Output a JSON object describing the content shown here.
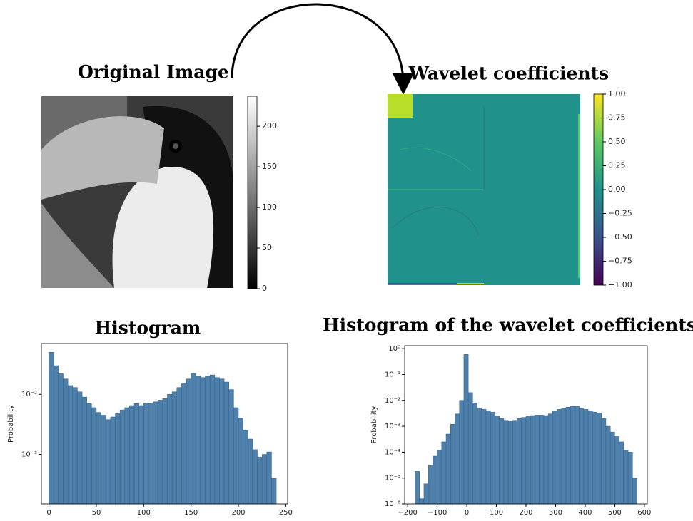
{
  "chart_data": [
    {
      "type": "image",
      "title": "Original Image",
      "colorbar": {
        "cmap": "gray",
        "ylim": [
          0,
          237
        ],
        "yticks": [
          0,
          50,
          100,
          150,
          200
        ]
      }
    },
    {
      "type": "image",
      "title": "Wavelet coefficients",
      "colorbar": {
        "cmap": "viridis",
        "ylim": [
          -1,
          1
        ],
        "yticks": [
          {
            "value": -1,
            "label": "−1.00"
          },
          {
            "value": -0.75,
            "label": "−0.75"
          },
          {
            "value": -0.5,
            "label": "−0.50"
          },
          {
            "value": -0.25,
            "label": "−0.25"
          },
          {
            "value": 0,
            "label": "0.00"
          },
          {
            "value": 0.25,
            "label": "0.25"
          },
          {
            "value": 0.5,
            "label": "0.50"
          },
          {
            "value": 0.75,
            "label": "0.75"
          },
          {
            "value": 1,
            "label": "1.00"
          }
        ]
      }
    },
    {
      "type": "histogram",
      "title": "Histogram",
      "ylabel": "Probability",
      "yscale": "log",
      "color": "#4f80ab",
      "bins": [
        0,
        5,
        10,
        15,
        20,
        25,
        30,
        35,
        40,
        45,
        50,
        55,
        60,
        65,
        70,
        75,
        80,
        85,
        90,
        95,
        100,
        105,
        110,
        115,
        120,
        125,
        130,
        135,
        140,
        145,
        150,
        155,
        160,
        165,
        170,
        175,
        180,
        185,
        190,
        195,
        200,
        205,
        210,
        215,
        220,
        225,
        230,
        235,
        240
      ],
      "values": [
        0.05,
        0.03,
        0.022,
        0.018,
        0.014,
        0.013,
        0.011,
        0.009,
        0.007,
        0.006,
        0.005,
        0.0045,
        0.0038,
        0.0042,
        0.0048,
        0.0055,
        0.006,
        0.0065,
        0.007,
        0.0065,
        0.0072,
        0.007,
        0.0075,
        0.008,
        0.0085,
        0.01,
        0.011,
        0.013,
        0.015,
        0.018,
        0.022,
        0.02,
        0.019,
        0.02,
        0.021,
        0.019,
        0.018,
        0.016,
        0.012,
        0.006,
        0.004,
        0.0025,
        0.0018,
        0.0012,
        0.0009,
        0.001,
        0.0011,
        0.0004
      ],
      "xlim": [
        -8,
        252
      ],
      "xticks": [
        0,
        50,
        100,
        150,
        200,
        250
      ],
      "ylim": [
        0.00015,
        0.07
      ],
      "yticks": [
        {
          "value": 0.001,
          "label": "10⁻³"
        },
        {
          "value": 0.01,
          "label": "10⁻²"
        }
      ]
    },
    {
      "type": "histogram",
      "title": "Histogram of the wavelet coefficients",
      "ylabel": "Probability",
      "yscale": "log",
      "color": "#4f80ab",
      "bins": [
        -175,
        -160,
        -145,
        -130,
        -115,
        -100,
        -85,
        -70,
        -55,
        -40,
        -25,
        -10,
        5,
        20,
        35,
        50,
        65,
        80,
        95,
        110,
        125,
        140,
        155,
        170,
        185,
        200,
        215,
        230,
        245,
        260,
        275,
        290,
        305,
        320,
        335,
        350,
        365,
        380,
        395,
        410,
        425,
        440,
        455,
        470,
        485,
        500,
        515,
        530,
        545,
        560,
        575
      ],
      "values": [
        1.8e-05,
        1.6e-06,
        6e-06,
        3e-05,
        7e-05,
        0.00012,
        0.00025,
        0.0005,
        0.0012,
        0.003,
        0.01,
        0.6,
        0.02,
        0.008,
        0.005,
        0.0045,
        0.004,
        0.0035,
        0.0025,
        0.002,
        0.0017,
        0.0016,
        0.0017,
        0.002,
        0.0022,
        0.0025,
        0.0026,
        0.0027,
        0.0027,
        0.0026,
        0.003,
        0.004,
        0.0045,
        0.005,
        0.0055,
        0.006,
        0.0058,
        0.005,
        0.0045,
        0.004,
        0.0035,
        0.0032,
        0.002,
        0.001,
        0.0006,
        0.0004,
        0.00025,
        0.00012,
        0.0001,
        1e-05
      ],
      "xlim": [
        -210,
        610
      ],
      "xticks": [
        {
          "value": -200,
          "label": "−200"
        },
        {
          "value": -100,
          "label": "−100"
        },
        0,
        100,
        200,
        300,
        400,
        500,
        600
      ],
      "ylim": [
        1e-06,
        1.3
      ],
      "yticks": [
        {
          "value": 1e-06,
          "label": "10⁻⁶"
        },
        {
          "value": 1e-05,
          "label": "10⁻⁵"
        },
        {
          "value": 0.0001,
          "label": "10⁻⁴"
        },
        {
          "value": 0.001,
          "label": "10⁻³"
        },
        {
          "value": 0.01,
          "label": "10⁻²"
        },
        {
          "value": 0.1,
          "label": "10⁻¹"
        },
        {
          "value": 1,
          "label": "10⁰"
        }
      ]
    }
  ]
}
